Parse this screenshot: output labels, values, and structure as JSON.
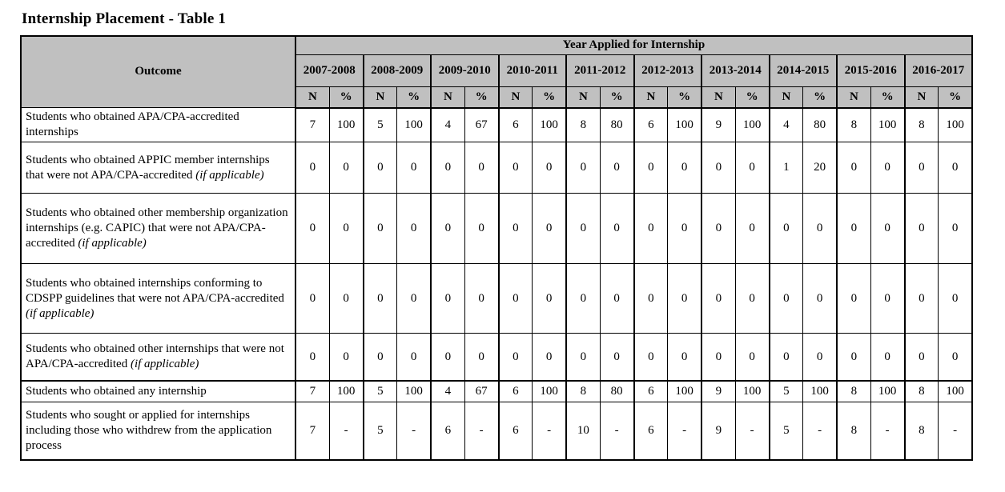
{
  "title": "Internship Placement - Table 1",
  "table": {
    "span_header": "Year Applied for Internship",
    "outcome_header": "Outcome",
    "sub_headers": [
      "N",
      "%"
    ],
    "years": [
      "2007-2008",
      "2008-2009",
      "2009-2010",
      "2010-2011",
      "2011-2012",
      "2012-2013",
      "2013-2014",
      "2014-2015",
      "2015-2016",
      "2016-2017"
    ],
    "rows": [
      {
        "label": "Students who obtained APA/CPA-accredited internships",
        "italic_suffix": "",
        "values": [
          "7",
          "100",
          "5",
          "100",
          "4",
          "67",
          "6",
          "100",
          "8",
          "80",
          "6",
          "100",
          "9",
          "100",
          "4",
          "80",
          "8",
          "100",
          "8",
          "100"
        ]
      },
      {
        "label": "Students who obtained APPIC member internships that were not APA/CPA-accredited",
        "italic_suffix": "(if applicable)",
        "values": [
          "0",
          "0",
          "0",
          "0",
          "0",
          "0",
          "0",
          "0",
          "0",
          "0",
          "0",
          "0",
          "0",
          "0",
          "1",
          "20",
          "0",
          "0",
          "0",
          "0"
        ]
      },
      {
        "label": "Students who obtained other membership organization internships (e.g. CAPIC) that were not APA/CPA-accredited",
        "italic_suffix": "(if applicable)",
        "values": [
          "0",
          "0",
          "0",
          "0",
          "0",
          "0",
          "0",
          "0",
          "0",
          "0",
          "0",
          "0",
          "0",
          "0",
          "0",
          "0",
          "0",
          "0",
          "0",
          "0"
        ]
      },
      {
        "label": "Students who obtained internships conforming to CDSPP guidelines that were not APA/CPA-accredited",
        "italic_suffix": "(if applicable)",
        "values": [
          "0",
          "0",
          "0",
          "0",
          "0",
          "0",
          "0",
          "0",
          "0",
          "0",
          "0",
          "0",
          "0",
          "0",
          "0",
          "0",
          "0",
          "0",
          "0",
          "0"
        ]
      },
      {
        "label": "Students who obtained other internships that were not APA/CPA-accredited",
        "italic_suffix": "(if applicable)",
        "values": [
          "0",
          "0",
          "0",
          "0",
          "0",
          "0",
          "0",
          "0",
          "0",
          "0",
          "0",
          "0",
          "0",
          "0",
          "0",
          "0",
          "0",
          "0",
          "0",
          "0"
        ]
      },
      {
        "label": "Students who obtained any internship",
        "italic_suffix": "",
        "values": [
          "7",
          "100",
          "5",
          "100",
          "4",
          "67",
          "6",
          "100",
          "8",
          "80",
          "6",
          "100",
          "9",
          "100",
          "5",
          "100",
          "8",
          "100",
          "8",
          "100"
        ]
      },
      {
        "label": "Students who sought or applied for internships including those who withdrew from the application process",
        "italic_suffix": "",
        "values": [
          "7",
          "-",
          "5",
          "-",
          "6",
          "-",
          "6",
          "-",
          "10",
          "-",
          "6",
          "-",
          "9",
          "-",
          "5",
          "-",
          "8",
          "-",
          "8",
          "-"
        ]
      }
    ],
    "colors": {
      "header_bg": "#c0c0c0",
      "border": "#000000",
      "text": "#000000"
    }
  }
}
